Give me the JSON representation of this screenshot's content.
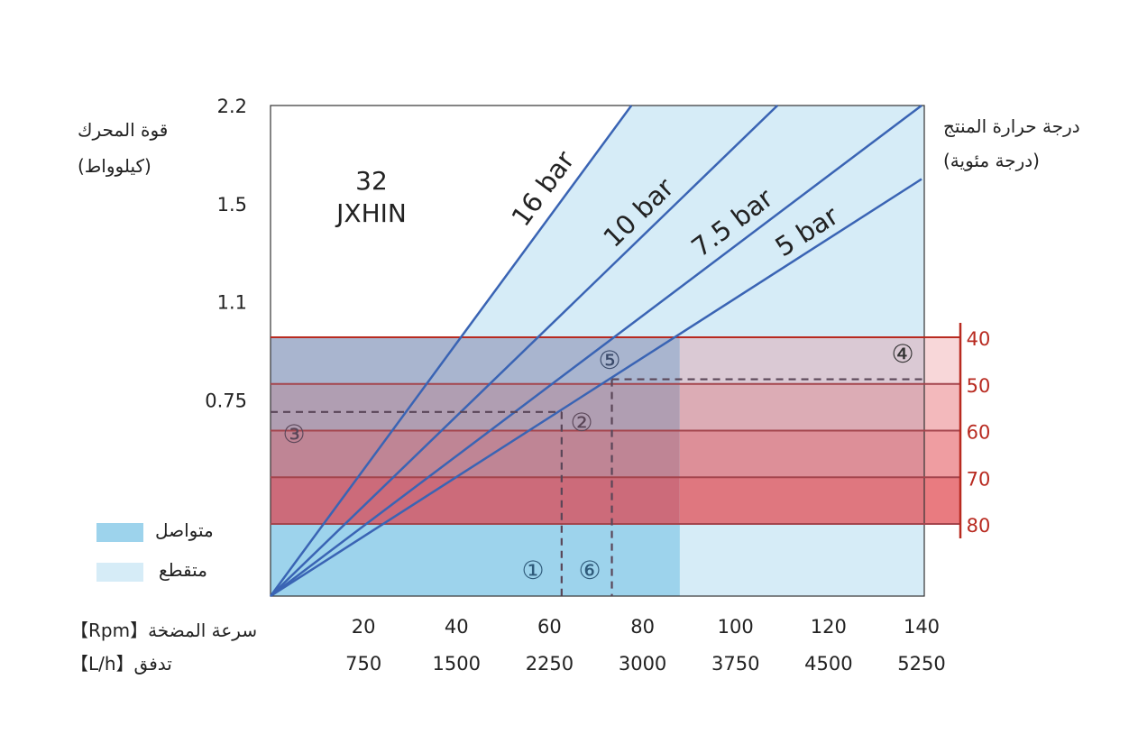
{
  "chart_data": {
    "type": "line",
    "title": "32 JXHIN",
    "title_lines": [
      "32",
      "JXHIN"
    ],
    "y_left_label": [
      "قوة المحرك",
      "(كيلوواط)"
    ],
    "y_right_label": [
      "درجة حرارة المنتج",
      "(درجة مئوية)"
    ],
    "x_label_rpm": "سرعة المضخة【Rpm】",
    "x_label_flow": "تدفق【L/h】",
    "x_ticks_rpm": [
      20,
      40,
      60,
      80,
      100,
      120,
      140
    ],
    "x_ticks_flow": [
      750,
      1500,
      2250,
      3000,
      3750,
      4500,
      5250
    ],
    "x_range_rpm": [
      0,
      140
    ],
    "y_ticks_power": [
      "2.2",
      "1.5",
      "1.1",
      "0.75"
    ],
    "y_axis_note": "ordinal power scale, ticks evenly spaced from top, origin at 0",
    "temperature_ticks": [
      40,
      50,
      60,
      70,
      80
    ],
    "continuous_limit_rpm": 88,
    "series": [
      {
        "name": "16 bar",
        "end_rpm": 77.6,
        "end_axis_fraction": 1.0
      },
      {
        "name": "10 bar",
        "end_rpm": 109,
        "end_axis_fraction": 1.0
      },
      {
        "name": "7.5 bar",
        "end_rpm": 140,
        "end_axis_fraction": 1.0
      },
      {
        "name": "5 bar",
        "end_rpm": 140,
        "end_axis_fraction": 0.85
      }
    ],
    "reference_points": [
      {
        "rpm": 62.6,
        "temperature": 56
      },
      {
        "rpm": 73.4,
        "temperature": 49
      }
    ],
    "markers": [
      "①",
      "②",
      "③",
      "④",
      "⑤",
      "⑥"
    ],
    "legend": [
      {
        "label": "متواصل",
        "color": "#9dd3ec"
      },
      {
        "label": "متقطع",
        "color": "#d6ecf7"
      }
    ],
    "legend_placement": "bottom-left"
  },
  "colors": {
    "line": "#3a64b4",
    "temp_axis": "#b82a20",
    "continuous": "#9dd3ec",
    "intermittent": "#d6ecf7"
  }
}
